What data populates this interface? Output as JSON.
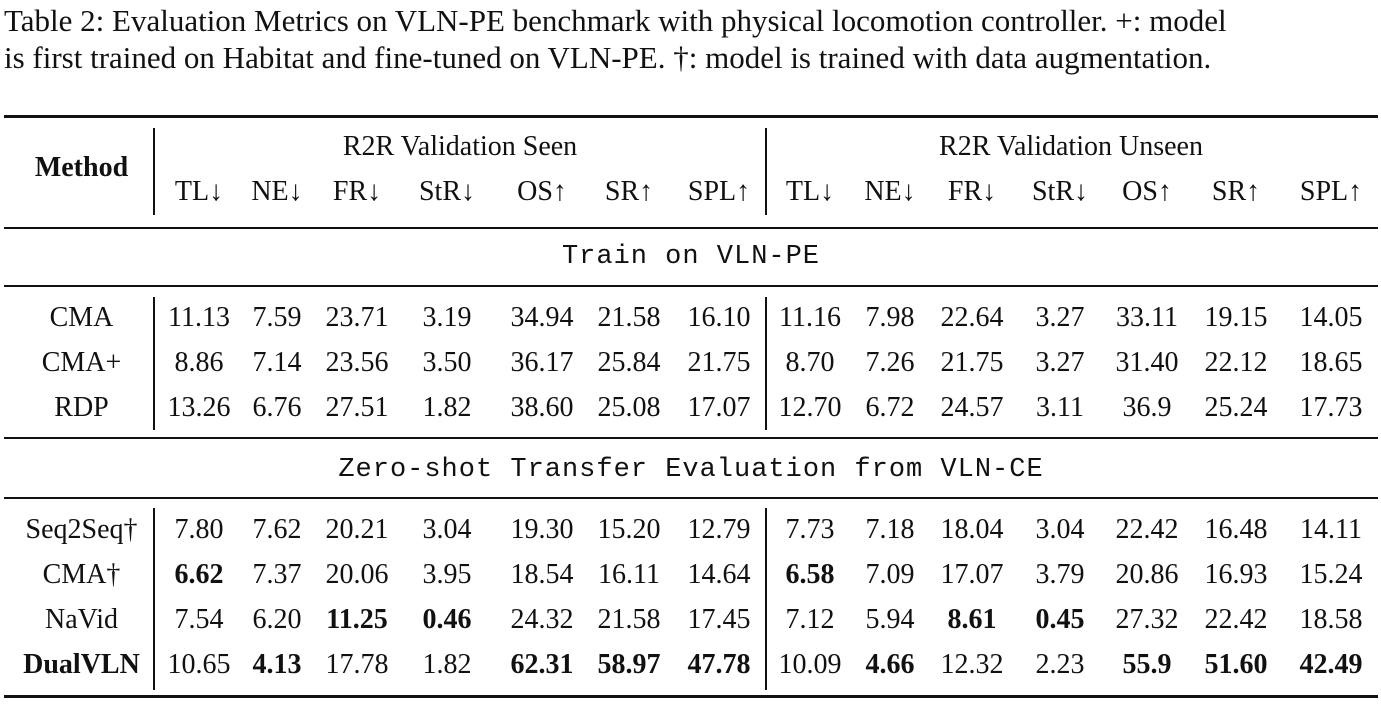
{
  "caption": {
    "line1": "Table 2: Evaluation Metrics on VLN-PE benchmark with physical locomotion controller. +: model",
    "line2": "is first trained on Habitat and fine-tuned on VLN-PE. †: model is trained with data augmentation."
  },
  "header": {
    "method": "Method",
    "group_seen": "R2R Validation Seen",
    "group_unseen": "R2R Validation Unseen",
    "metrics": [
      "TL↓",
      "NE↓",
      "FR↓",
      "StR↓",
      "OS↑",
      "SR↑",
      "SPL↑"
    ]
  },
  "sections": [
    {
      "title": "Train on VLN-PE",
      "rows": [
        {
          "method": "CMA",
          "method_bold": false,
          "values": [
            "11.13",
            "7.59",
            "23.71",
            "3.19",
            "34.94",
            "21.58",
            "16.10",
            "11.16",
            "7.98",
            "22.64",
            "3.27",
            "33.11",
            "19.15",
            "14.05"
          ],
          "bold": []
        },
        {
          "method": "CMA+",
          "method_bold": false,
          "values": [
            "8.86",
            "7.14",
            "23.56",
            "3.50",
            "36.17",
            "25.84",
            "21.75",
            "8.70",
            "7.26",
            "21.75",
            "3.27",
            "31.40",
            "22.12",
            "18.65"
          ],
          "bold": []
        },
        {
          "method": "RDP",
          "method_bold": false,
          "values": [
            "13.26",
            "6.76",
            "27.51",
            "1.82",
            "38.60",
            "25.08",
            "17.07",
            "12.70",
            "6.72",
            "24.57",
            "3.11",
            "36.9",
            "25.24",
            "17.73"
          ],
          "bold": []
        }
      ]
    },
    {
      "title": "Zero-shot Transfer Evaluation from VLN-CE",
      "rows": [
        {
          "method": "Seq2Seq†",
          "method_bold": false,
          "values": [
            "7.80",
            "7.62",
            "20.21",
            "3.04",
            "19.30",
            "15.20",
            "12.79",
            "7.73",
            "7.18",
            "18.04",
            "3.04",
            "22.42",
            "16.48",
            "14.11"
          ],
          "bold": []
        },
        {
          "method": "CMA†",
          "method_bold": false,
          "values": [
            "6.62",
            "7.37",
            "20.06",
            "3.95",
            "18.54",
            "16.11",
            "14.64",
            "6.58",
            "7.09",
            "17.07",
            "3.79",
            "20.86",
            "16.93",
            "15.24"
          ],
          "bold": [
            0,
            7
          ]
        },
        {
          "method": "NaVid",
          "method_bold": false,
          "values": [
            "7.54",
            "6.20",
            "11.25",
            "0.46",
            "24.32",
            "21.58",
            "17.45",
            "7.12",
            "5.94",
            "8.61",
            "0.45",
            "27.32",
            "22.42",
            "18.58"
          ],
          "bold": [
            2,
            3,
            9,
            10
          ]
        },
        {
          "method": "DualVLN",
          "method_bold": true,
          "values": [
            "10.65",
            "4.13",
            "17.78",
            "1.82",
            "62.31",
            "58.97",
            "47.78",
            "10.09",
            "4.66",
            "12.32",
            "2.23",
            "55.9",
            "51.60",
            "42.49"
          ],
          "bold": [
            1,
            4,
            5,
            6,
            8,
            11,
            12,
            13
          ]
        }
      ]
    }
  ]
}
